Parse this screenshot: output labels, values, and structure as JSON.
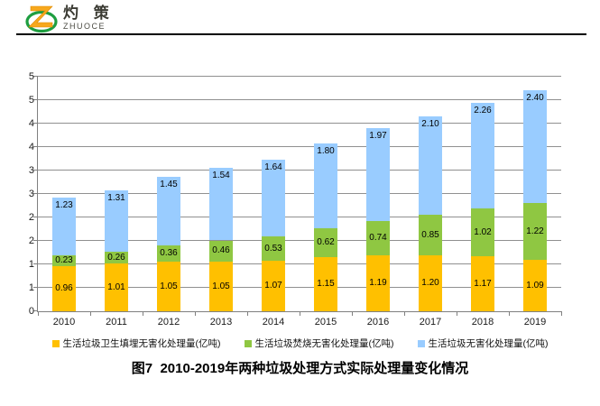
{
  "brand": {
    "name_cn": "灼 策",
    "name_en": "ZHUOCE"
  },
  "chart_data": {
    "type": "bar",
    "stacked": true,
    "title": "图7  2010-2019年两种垃圾处理方式实际处理量变化情况",
    "categories": [
      "2010",
      "2011",
      "2012",
      "2013",
      "2014",
      "2015",
      "2016",
      "2017",
      "2018",
      "2019"
    ],
    "series": [
      {
        "name": "生活垃圾卫生填埋无害化处理量(亿吨)",
        "color": "#FFC000",
        "label_position": "center",
        "values": [
          0.96,
          1.01,
          1.05,
          1.05,
          1.07,
          1.15,
          1.19,
          1.2,
          1.17,
          1.09
        ]
      },
      {
        "name": "生活垃圾焚烧无害化处理量(亿吨)",
        "color": "#8FC742",
        "label_position": "center",
        "values": [
          0.23,
          0.26,
          0.36,
          0.46,
          0.53,
          0.62,
          0.74,
          0.85,
          1.02,
          1.22
        ]
      },
      {
        "name": "生活垃圾无害化处理量(亿吨)",
        "color": "#99CCFF",
        "label_position": "inside-top",
        "values": [
          1.23,
          1.31,
          1.45,
          1.54,
          1.64,
          1.8,
          1.97,
          2.1,
          2.26,
          2.4
        ]
      }
    ],
    "y_axis": {
      "min": 0,
      "max": 5,
      "step": 0.5,
      "tick_labels_bottom_to_top": [
        "0",
        "1",
        "1",
        "2",
        "2",
        "3",
        "3",
        "4",
        "4",
        "5",
        "5"
      ]
    },
    "grid": true,
    "legend_position": "bottom",
    "value_format": "0.00",
    "grid_color": "#909090",
    "label_color": "#000000"
  }
}
